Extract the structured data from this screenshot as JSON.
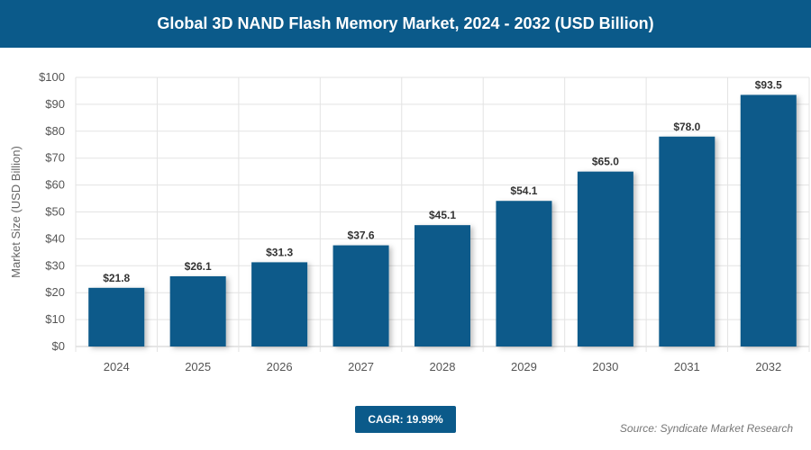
{
  "chart_data": {
    "type": "bar",
    "title": "Global 3D NAND Flash Memory Market, 2024 - 2032 (USD Billion)",
    "xlabel": "",
    "ylabel": "Market Size (USD Billion)",
    "categories": [
      "2024",
      "2025",
      "2026",
      "2027",
      "2028",
      "2029",
      "2030",
      "2031",
      "2032"
    ],
    "values": [
      21.8,
      26.1,
      31.3,
      37.6,
      45.1,
      54.1,
      65.0,
      78.0,
      93.5
    ],
    "data_labels": [
      "$21.8",
      "$26.1",
      "$31.3",
      "$37.6",
      "$45.1",
      "$54.1",
      "$65.0",
      "$78.0",
      "$93.5"
    ],
    "ylim": [
      0,
      100
    ],
    "yticks": [
      "$0",
      "$10",
      "$20",
      "$30",
      "$40",
      "$50",
      "$60",
      "$70",
      "$80",
      "$90",
      "$100"
    ],
    "grid": true,
    "colors": {
      "bar": "#0b5a8a",
      "header": "#0b5a8a"
    }
  },
  "cagr": "CAGR: 19.99%",
  "source": "Source: Syndicate Market Research"
}
